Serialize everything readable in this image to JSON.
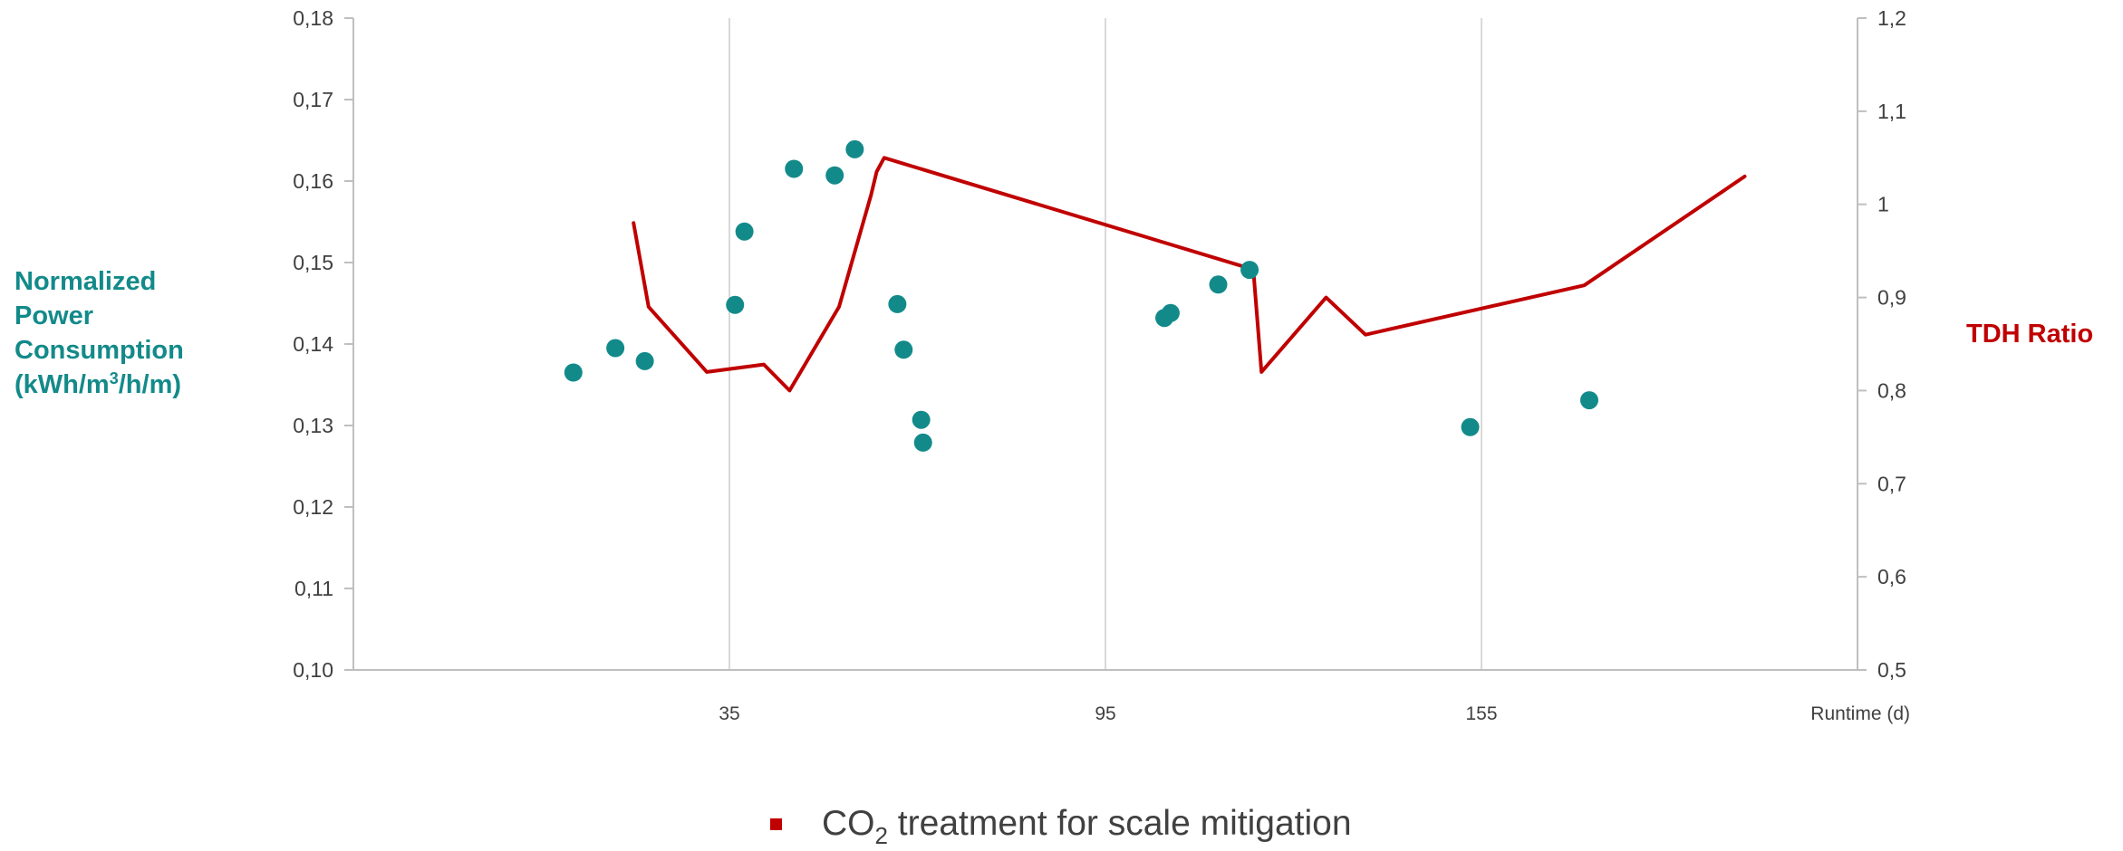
{
  "chart_data": {
    "type": "scatter",
    "y_axis_title": {
      "lines": [
        "Normalized",
        "Power",
        "Consumption"
      ],
      "unit_prefix": "(kWh/m",
      "unit_superscript": "3",
      "unit_suffix": "/h/m)"
    },
    "y2_axis_title": "TDH Ratio",
    "x_axis_title": "Runtime (d)",
    "xlim": [
      -25,
      215
    ],
    "ylim": [
      0.1,
      0.18
    ],
    "y2lim": [
      0.5,
      1.2
    ],
    "x_ticks": [
      35,
      95,
      155
    ],
    "x_tick_labels": [
      "35",
      "95",
      "155"
    ],
    "y_ticks": [
      0.1,
      0.11,
      0.12,
      0.13,
      0.14,
      0.15,
      0.16,
      0.17,
      0.18
    ],
    "y_tick_labels": [
      "0,10",
      "0,11",
      "0,12",
      "0,13",
      "0,14",
      "0,15",
      "0,16",
      "0,17",
      "0,18"
    ],
    "y2_ticks": [
      0.5,
      0.6,
      0.7,
      0.8,
      0.9,
      1.0,
      1.1,
      1.2
    ],
    "y2_tick_labels": [
      "0,5",
      "0,6",
      "0,7",
      "0,8",
      "0,9",
      "1",
      "1,1",
      "1,2"
    ],
    "vertical_gridlines": true,
    "horizontal_gridlines": false,
    "legend": {
      "position": "bottom",
      "prefix": "CO",
      "subscript": "2",
      "suffix": " treatment for scale mitigation"
    },
    "series": [
      {
        "kind": "scatter",
        "axis": "left",
        "color": "#138a8a",
        "points": [
          {
            "x": 10.1,
            "y": 0.1365
          },
          {
            "x": 16.8,
            "y": 0.1395
          },
          {
            "x": 21.5,
            "y": 0.1379
          },
          {
            "x": 35.9,
            "y": 0.1448
          },
          {
            "x": 37.4,
            "y": 0.1538
          },
          {
            "x": 45.3,
            "y": 0.1615
          },
          {
            "x": 51.8,
            "y": 0.1607
          },
          {
            "x": 55.0,
            "y": 0.1639
          },
          {
            "x": 61.8,
            "y": 0.1449
          },
          {
            "x": 62.8,
            "y": 0.1393
          },
          {
            "x": 65.6,
            "y": 0.1307
          },
          {
            "x": 65.9,
            "y": 0.1279
          },
          {
            "x": 104.4,
            "y": 0.1432
          },
          {
            "x": 105.4,
            "y": 0.1438
          },
          {
            "x": 113.0,
            "y": 0.1473
          },
          {
            "x": 118.0,
            "y": 0.1491
          },
          {
            "x": 153.2,
            "y": 0.1298
          },
          {
            "x": 172.2,
            "y": 0.1331
          }
        ]
      },
      {
        "kind": "line",
        "axis": "right",
        "color": "#c00000",
        "points": [
          {
            "x": 19.7,
            "y2": 0.98
          },
          {
            "x": 22.1,
            "y2": 0.89
          },
          {
            "x": 31.4,
            "y2": 0.82
          },
          {
            "x": 40.5,
            "y2": 0.828
          },
          {
            "x": 44.6,
            "y2": 0.8
          },
          {
            "x": 52.5,
            "y2": 0.89
          },
          {
            "x": 57.6,
            "y2": 1.01
          },
          {
            "x": 58.5,
            "y2": 1.035
          },
          {
            "x": 59.7,
            "y2": 1.05
          },
          {
            "x": 118.6,
            "y2": 0.93
          },
          {
            "x": 119.9,
            "y2": 0.82
          },
          {
            "x": 130.2,
            "y2": 0.9
          },
          {
            "x": 136.5,
            "y2": 0.86
          },
          {
            "x": 171.4,
            "y2": 0.913
          },
          {
            "x": 197.0,
            "y2": 1.03
          }
        ]
      }
    ]
  }
}
